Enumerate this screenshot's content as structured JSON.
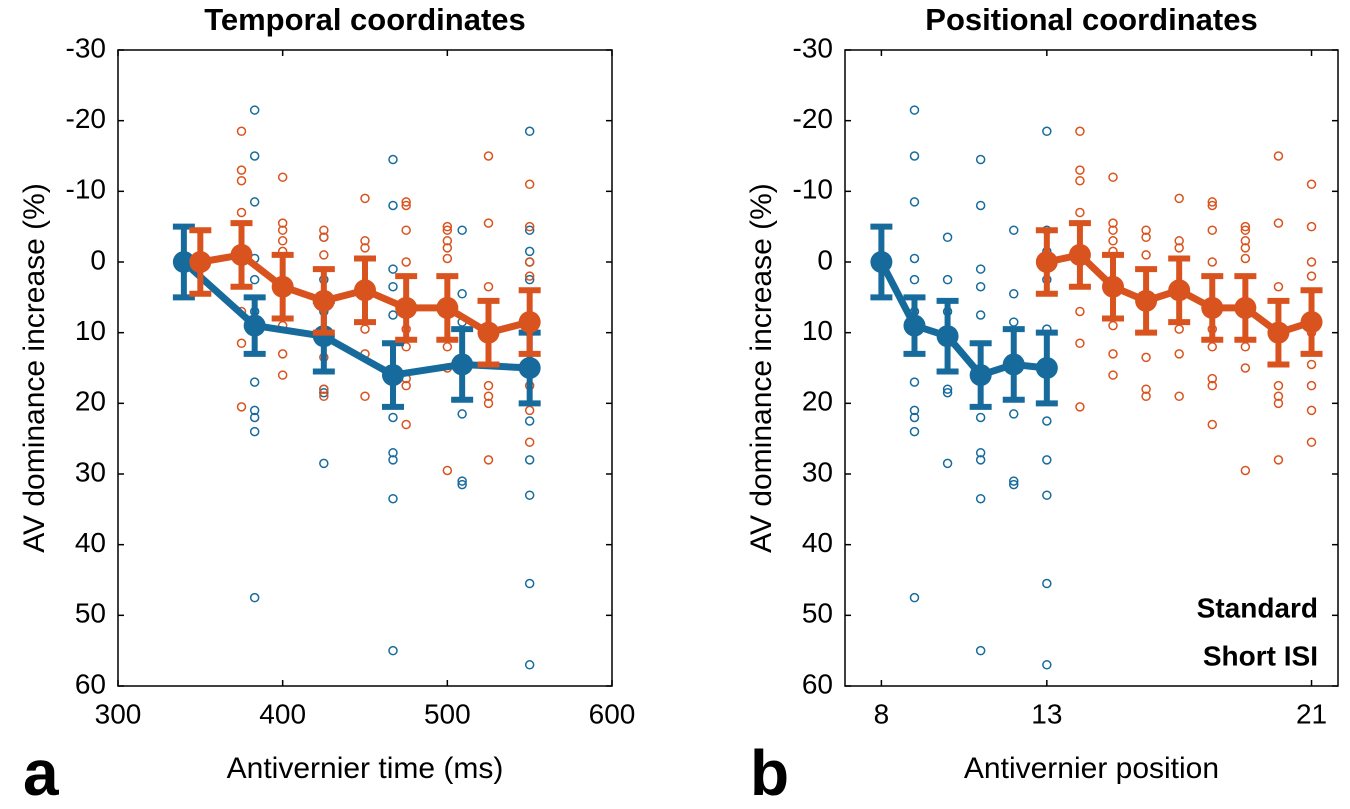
{
  "chart_data": [
    {
      "type": "line",
      "title": "Temporal coordinates",
      "xlabel": "Antivernier time (ms)",
      "ylabel": "AV dominance increase (%)",
      "panel_label": "a",
      "xlim": [
        300,
        600
      ],
      "xticks": [
        300,
        400,
        500,
        600
      ],
      "ylim": [
        60,
        -30
      ],
      "yticks": [
        -30,
        -20,
        -10,
        0,
        10,
        20,
        30,
        40,
        50,
        60
      ],
      "series": [
        {
          "color": "#176b9c",
          "x": [
            340,
            383,
            425,
            467,
            509,
            550
          ],
          "values": [
            0,
            9,
            10.5,
            16,
            14.5,
            15
          ],
          "errors": [
            5,
            4,
            5,
            4.5,
            5,
            5
          ],
          "dot_groups": [
            {
              "x": 383,
              "values": [
                -21.5,
                -15,
                -8.5,
                -0.5,
                2.5,
                7,
                17,
                21,
                22,
                24,
                47.5
              ]
            },
            {
              "x": 425,
              "values": [
                -3.5,
                2.5,
                7,
                18,
                18.5,
                28.5
              ]
            },
            {
              "x": 467,
              "values": [
                -14.5,
                -8,
                1,
                3.5,
                7.5,
                22,
                27,
                28,
                33.5,
                55
              ]
            },
            {
              "x": 509,
              "values": [
                -4.5,
                4.5,
                8.5,
                21.5,
                31,
                31.5
              ]
            },
            {
              "x": 550,
              "values": [
                -18.5,
                -4.5,
                -1.5,
                0,
                2.5,
                9.5,
                22.5,
                28,
                33,
                45.5,
                57
              ]
            }
          ]
        },
        {
          "color": "#d9531e",
          "x": [
            350,
            375,
            400,
            425,
            450,
            475,
            500,
            525,
            550
          ],
          "values": [
            0,
            -1,
            3.5,
            5.5,
            4,
            6.5,
            6.5,
            10,
            8.5
          ],
          "errors": [
            4.5,
            4.5,
            4.5,
            4.5,
            4.5,
            4.5,
            4.5,
            4.5,
            4.5
          ],
          "dot_groups": [
            {
              "x": 375,
              "values": [
                -18.5,
                -13,
                -11.5,
                -7,
                7,
                11.5,
                20.5
              ]
            },
            {
              "x": 400,
              "values": [
                -12,
                -5.5,
                -4.5,
                -3,
                -1.5,
                9,
                13,
                16
              ]
            },
            {
              "x": 425,
              "values": [
                -4.5,
                -3.5,
                -1,
                13.5,
                18,
                19
              ]
            },
            {
              "x": 450,
              "values": [
                -9,
                -3,
                -2,
                4,
                9.5,
                13,
                19
              ]
            },
            {
              "x": 475,
              "values": [
                -8.5,
                -8,
                -4.5,
                0,
                9.5,
                12,
                16.5,
                17.5,
                23
              ]
            },
            {
              "x": 500,
              "values": [
                -5,
                -4.5,
                -3,
                -2,
                -0.5,
                12,
                15,
                29.5
              ]
            },
            {
              "x": 525,
              "values": [
                -15,
                -5.5,
                3.5,
                17.5,
                19,
                20,
                28
              ]
            },
            {
              "x": 550,
              "values": [
                -11,
                -5,
                0,
                2,
                10,
                14.5,
                17.5,
                21,
                25.5
              ]
            }
          ]
        }
      ]
    },
    {
      "type": "line",
      "title": "Positional coordinates",
      "xlabel": "Antivernier position",
      "ylabel": "AV dominance increase (%)",
      "panel_label": "b",
      "xlim": [
        6.9,
        21.8
      ],
      "xticks": [
        8,
        13,
        21
      ],
      "ylim": [
        60,
        -30
      ],
      "yticks": [
        -30,
        -20,
        -10,
        0,
        10,
        20,
        30,
        40,
        50,
        60
      ],
      "legend": "lower right",
      "series": [
        {
          "name": "Standard",
          "color": "#176b9c",
          "x": [
            8,
            9,
            10,
            11,
            12,
            13
          ],
          "values": [
            0,
            9,
            10.5,
            16,
            14.5,
            15
          ],
          "errors": [
            5,
            4,
            5,
            4.5,
            5,
            5
          ],
          "dot_groups": [
            {
              "x": 9,
              "values": [
                -21.5,
                -15,
                -8.5,
                -0.5,
                2.5,
                7,
                17,
                21,
                22,
                24,
                47.5
              ]
            },
            {
              "x": 10,
              "values": [
                -3.5,
                2.5,
                7,
                18,
                18.5,
                28.5
              ]
            },
            {
              "x": 11,
              "values": [
                -14.5,
                -8,
                1,
                3.5,
                7.5,
                22,
                27,
                28,
                33.5,
                55
              ]
            },
            {
              "x": 12,
              "values": [
                -4.5,
                4.5,
                8.5,
                21.5,
                31,
                31.5
              ]
            },
            {
              "x": 13,
              "values": [
                -18.5,
                -4.5,
                -1.5,
                0,
                2.5,
                9.5,
                22.5,
                28,
                33,
                45.5,
                57
              ]
            }
          ]
        },
        {
          "name": "Short ISI",
          "color": "#d9531e",
          "x": [
            13,
            14,
            15,
            16,
            17,
            18,
            19,
            20,
            21
          ],
          "values": [
            0,
            -1,
            3.5,
            5.5,
            4,
            6.5,
            6.5,
            10,
            8.5
          ],
          "errors": [
            4.5,
            4.5,
            4.5,
            4.5,
            4.5,
            4.5,
            4.5,
            4.5,
            4.5
          ],
          "dot_groups": [
            {
              "x": 14,
              "values": [
                -18.5,
                -13,
                -11.5,
                -7,
                7,
                11.5,
                20.5
              ]
            },
            {
              "x": 15,
              "values": [
                -12,
                -5.5,
                -4.5,
                -3,
                -1.5,
                9,
                13,
                16
              ]
            },
            {
              "x": 16,
              "values": [
                -4.5,
                -3.5,
                -1,
                13.5,
                18,
                19
              ]
            },
            {
              "x": 17,
              "values": [
                -9,
                -3,
                -2,
                4,
                9.5,
                13,
                19
              ]
            },
            {
              "x": 18,
              "values": [
                -8.5,
                -8,
                -4.5,
                0,
                9.5,
                12,
                16.5,
                17.5,
                23
              ]
            },
            {
              "x": 19,
              "values": [
                -5,
                -4.5,
                -3,
                -2,
                -0.5,
                12,
                15,
                29.5
              ]
            },
            {
              "x": 20,
              "values": [
                -15,
                -5.5,
                3.5,
                17.5,
                19,
                20,
                28
              ]
            },
            {
              "x": 21,
              "values": [
                -11,
                -5,
                0,
                2,
                10,
                14.5,
                17.5,
                21,
                25.5
              ]
            }
          ]
        }
      ]
    }
  ]
}
